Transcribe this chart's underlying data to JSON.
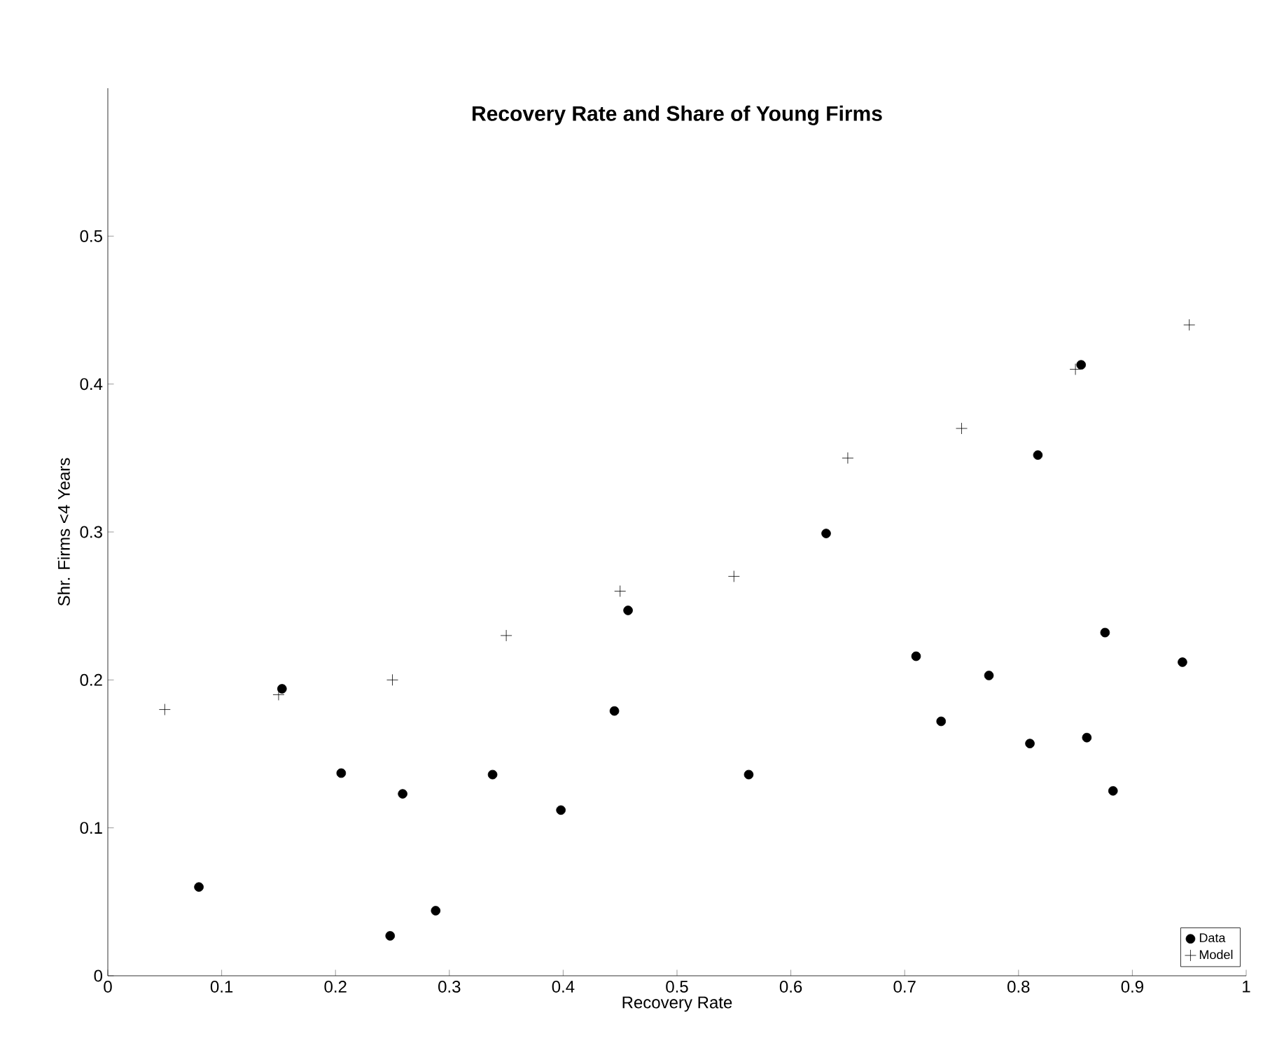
{
  "chart_data": {
    "type": "scatter",
    "title": "Recovery Rate and Share of Young Firms",
    "xlabel": "Recovery Rate",
    "ylabel": "Shr. Firms <4 Years",
    "xlim": [
      0,
      1
    ],
    "ylim": [
      0,
      0.6
    ],
    "xticks": [
      0,
      0.1,
      0.2,
      0.3,
      0.4,
      0.5,
      0.6,
      0.7,
      0.8,
      0.9,
      1
    ],
    "yticks": [
      0,
      0.1,
      0.2,
      0.3,
      0.4,
      0.5
    ],
    "legend": "bottom right",
    "grid": false,
    "series": [
      {
        "name": "Data",
        "color": "#000000",
        "marker": "circle",
        "x": [
          0.08,
          0.153,
          0.205,
          0.248,
          0.259,
          0.288,
          0.338,
          0.398,
          0.445,
          0.457,
          0.563,
          0.631,
          0.71,
          0.732,
          0.774,
          0.81,
          0.817,
          0.855,
          0.86,
          0.876,
          0.883,
          0.944
        ],
        "values": [
          0.06,
          0.194,
          0.137,
          0.027,
          0.123,
          0.044,
          0.136,
          0.112,
          0.179,
          0.247,
          0.136,
          0.299,
          0.216,
          0.172,
          0.203,
          0.157,
          0.352,
          0.413,
          0.161,
          0.232,
          0.125,
          0.212
        ]
      },
      {
        "name": "Model",
        "color": "#000000",
        "marker": "cross",
        "x": [
          0.05,
          0.15,
          0.25,
          0.35,
          0.45,
          0.55,
          0.65,
          0.75,
          0.85,
          0.95
        ],
        "values": [
          0.18,
          0.19,
          0.2,
          0.23,
          0.26,
          0.27,
          0.35,
          0.37,
          0.41,
          0.44
        ]
      }
    ]
  }
}
